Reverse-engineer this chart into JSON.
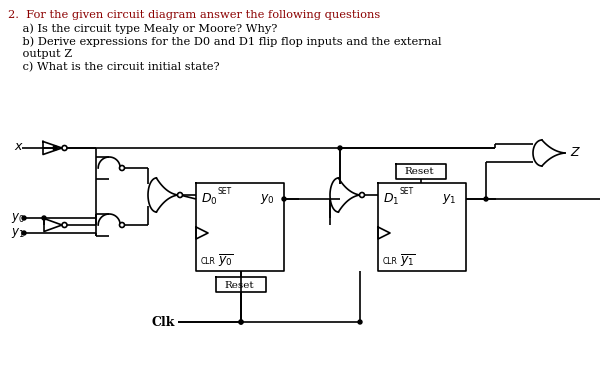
{
  "bg_color": "#ffffff",
  "title_color": "#8B0000",
  "body_color": "#000000",
  "text_lines": [
    [
      "2.  For the given circuit diagram answer the following questions",
      "#8B0000"
    ],
    [
      "    a) Is the circuit type Mealy or Moore? Why?",
      "#000000"
    ],
    [
      "    b) Derive expressions for the D0 and D1 flip flop inputs and the external",
      "#000000"
    ],
    [
      "    output Z",
      "#000000"
    ],
    [
      "    c) What is the circuit initial state?",
      "#000000"
    ]
  ],
  "text_fontsize": 8.2,
  "lw": 1.2
}
